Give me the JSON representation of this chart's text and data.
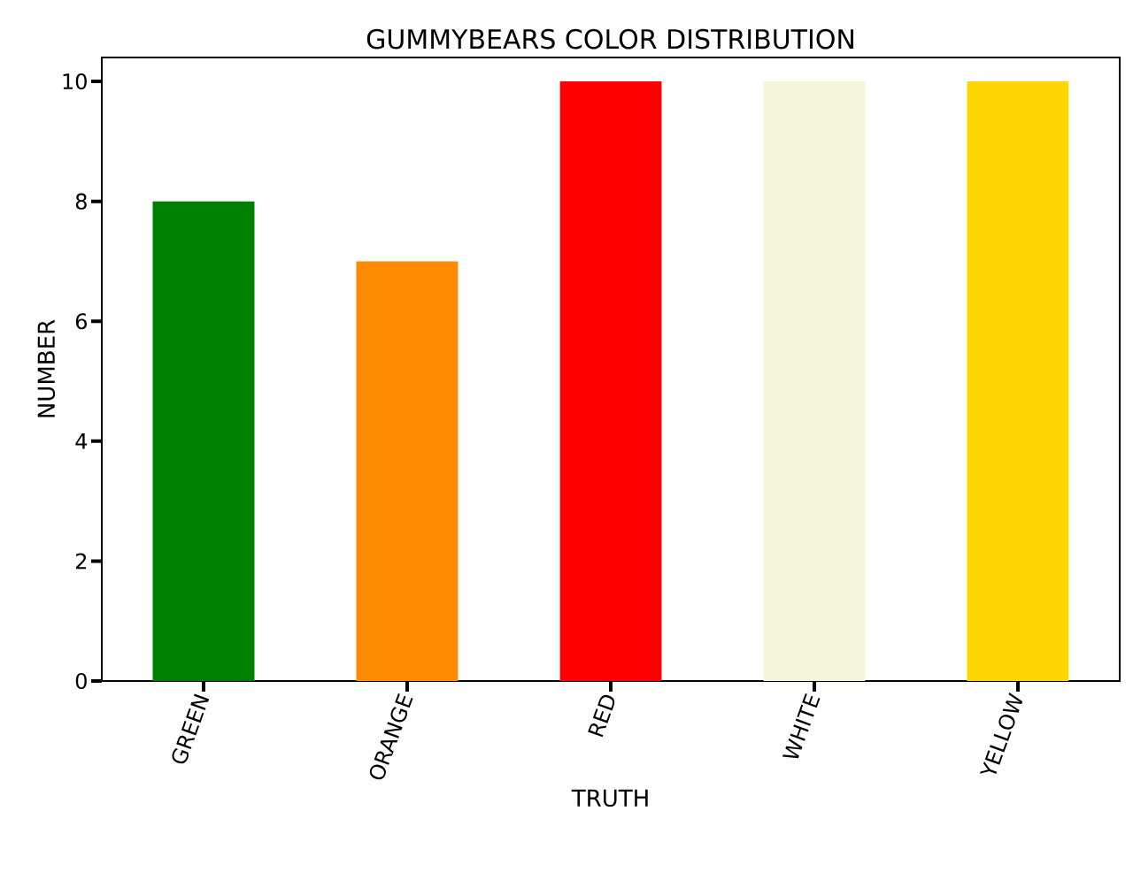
{
  "chart_data": {
    "type": "bar",
    "title": "GUMMYBEARS COLOR DISTRIBUTION",
    "xlabel": "TRUTH",
    "ylabel": "NUMBER",
    "categories": [
      "GREEN",
      "ORANGE",
      "RED",
      "WHITE",
      "YELLOW"
    ],
    "values": [
      8,
      7,
      10,
      10,
      10
    ],
    "colors": [
      "#008000",
      "#ff8c00",
      "#ff0000",
      "#f5f5dc",
      "#ffd700"
    ],
    "ylim": [
      0,
      10.4
    ],
    "yticks": [
      0,
      2,
      4,
      6,
      8,
      10
    ],
    "grid": false
  }
}
